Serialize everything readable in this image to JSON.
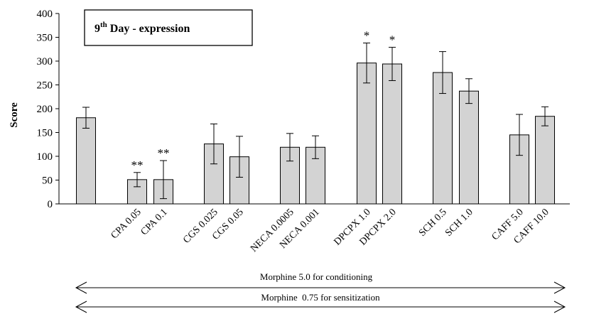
{
  "chart_data": {
    "type": "bar",
    "title": "9th Day - expression",
    "title_main": "9",
    "title_sup": "th",
    "title_rest": " Day - expression",
    "ylabel": "Score",
    "xlabel": "",
    "ylim": [
      0,
      400
    ],
    "yticks": [
      "0",
      "50",
      "100",
      "150",
      "200",
      "250",
      "300",
      "350",
      "400"
    ],
    "grid": false,
    "legend": "none",
    "bar_color": "#d3d3d3",
    "categories": [
      "",
      "CPA 0.05",
      "CPA 0.1",
      "CGS 0.025",
      "CGS 0.05",
      "NECA 0.0005",
      "NECA 0.001",
      "DPCPX 1.0",
      "DPCPX 2.0",
      "SCH 0.5",
      "SCH 1.0",
      "CAFF 5.0",
      "CAFF 10.0"
    ],
    "values": [
      181,
      51,
      51,
      126,
      99,
      119,
      119,
      296,
      294,
      276,
      237,
      145,
      184
    ],
    "errors": [
      22,
      15,
      40,
      42,
      43,
      29,
      24,
      42,
      35,
      44,
      26,
      43,
      20
    ],
    "annotations": [
      "",
      "**",
      "**",
      "",
      "",
      "",
      "",
      "*",
      "*",
      "",
      "",
      "",
      ""
    ],
    "notes": [
      "Morphine 5.0 for conditioning",
      "Morphine  0.75 for sensitization"
    ]
  }
}
